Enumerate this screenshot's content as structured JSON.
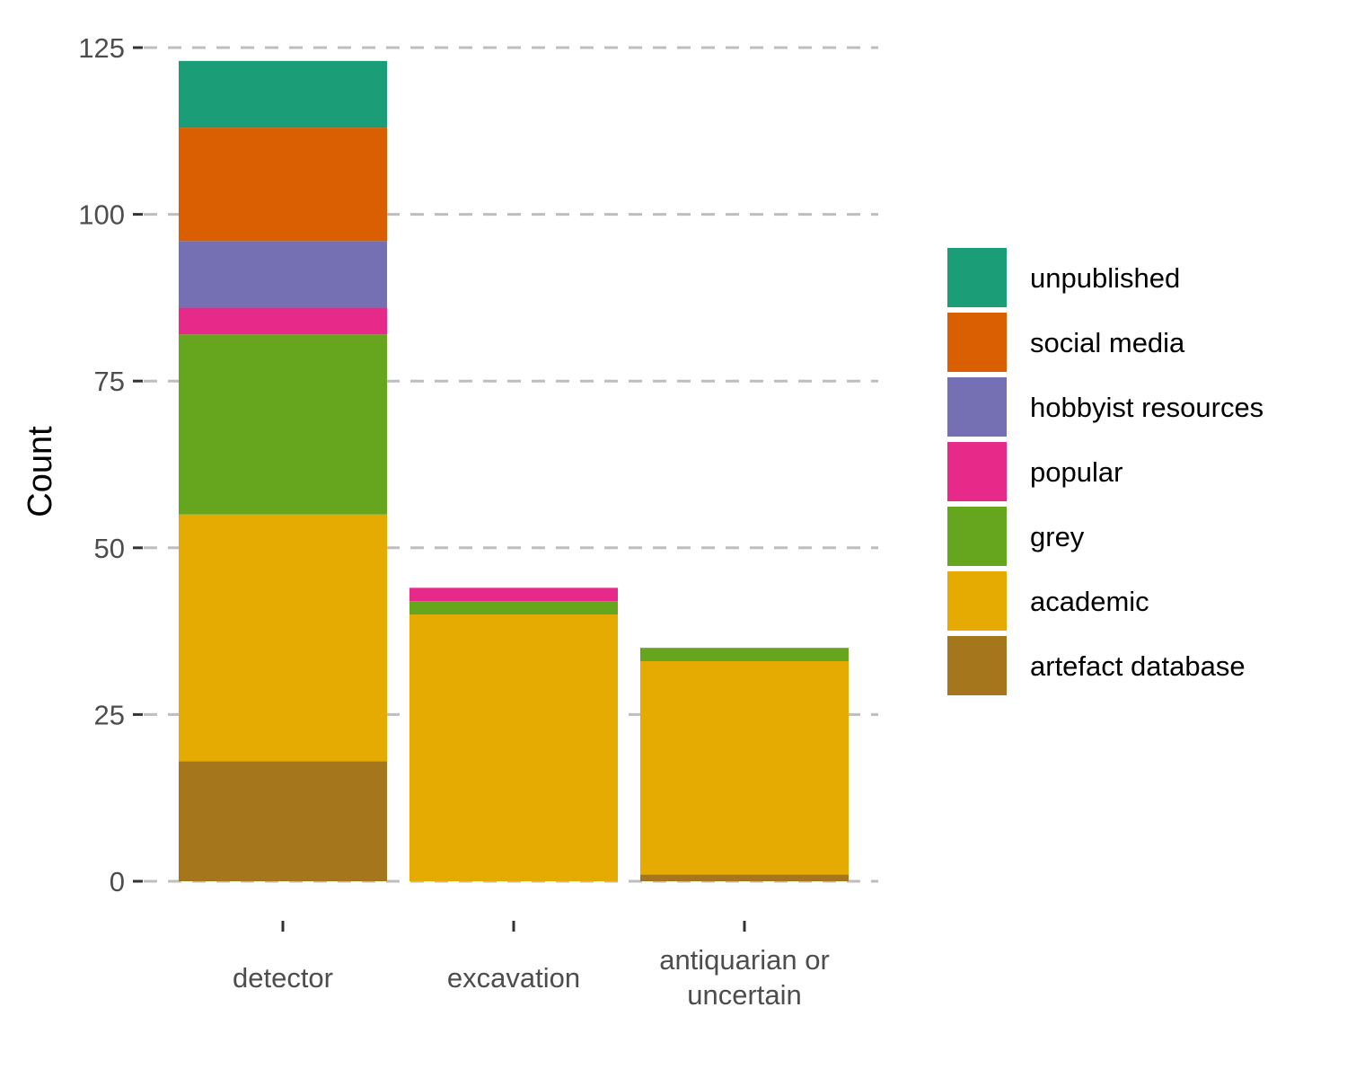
{
  "chart_data": {
    "type": "bar",
    "stacked": true,
    "title": "",
    "xlabel": "",
    "ylabel": "Count",
    "ylim": [
      0,
      125
    ],
    "yticks": [
      0,
      25,
      50,
      75,
      100,
      125
    ],
    "grid": "horizontal dashed",
    "legend_position": "right",
    "categories": [
      [
        "detector"
      ],
      [
        "excavation"
      ],
      [
        "antiquarian or",
        "uncertain"
      ]
    ],
    "series": [
      {
        "name": "artefact database",
        "color": "#A6761D",
        "values": [
          18,
          0,
          1
        ]
      },
      {
        "name": "academic",
        "color": "#E6AB02",
        "values": [
          37,
          40,
          32
        ]
      },
      {
        "name": "grey",
        "color": "#66A61E",
        "values": [
          27,
          2,
          2
        ]
      },
      {
        "name": "popular",
        "color": "#E7298A",
        "values": [
          4,
          2,
          0
        ]
      },
      {
        "name": "hobbyist resources",
        "color": "#7570B3",
        "values": [
          10,
          0,
          0
        ]
      },
      {
        "name": "social media",
        "color": "#D95F02",
        "values": [
          17,
          0,
          0
        ]
      },
      {
        "name": "unpublished",
        "color": "#1B9E77",
        "values": [
          10,
          0,
          0
        ]
      }
    ],
    "legend_order": [
      "unpublished",
      "social media",
      "hobbyist resources",
      "popular",
      "grey",
      "academic",
      "artefact database"
    ]
  }
}
